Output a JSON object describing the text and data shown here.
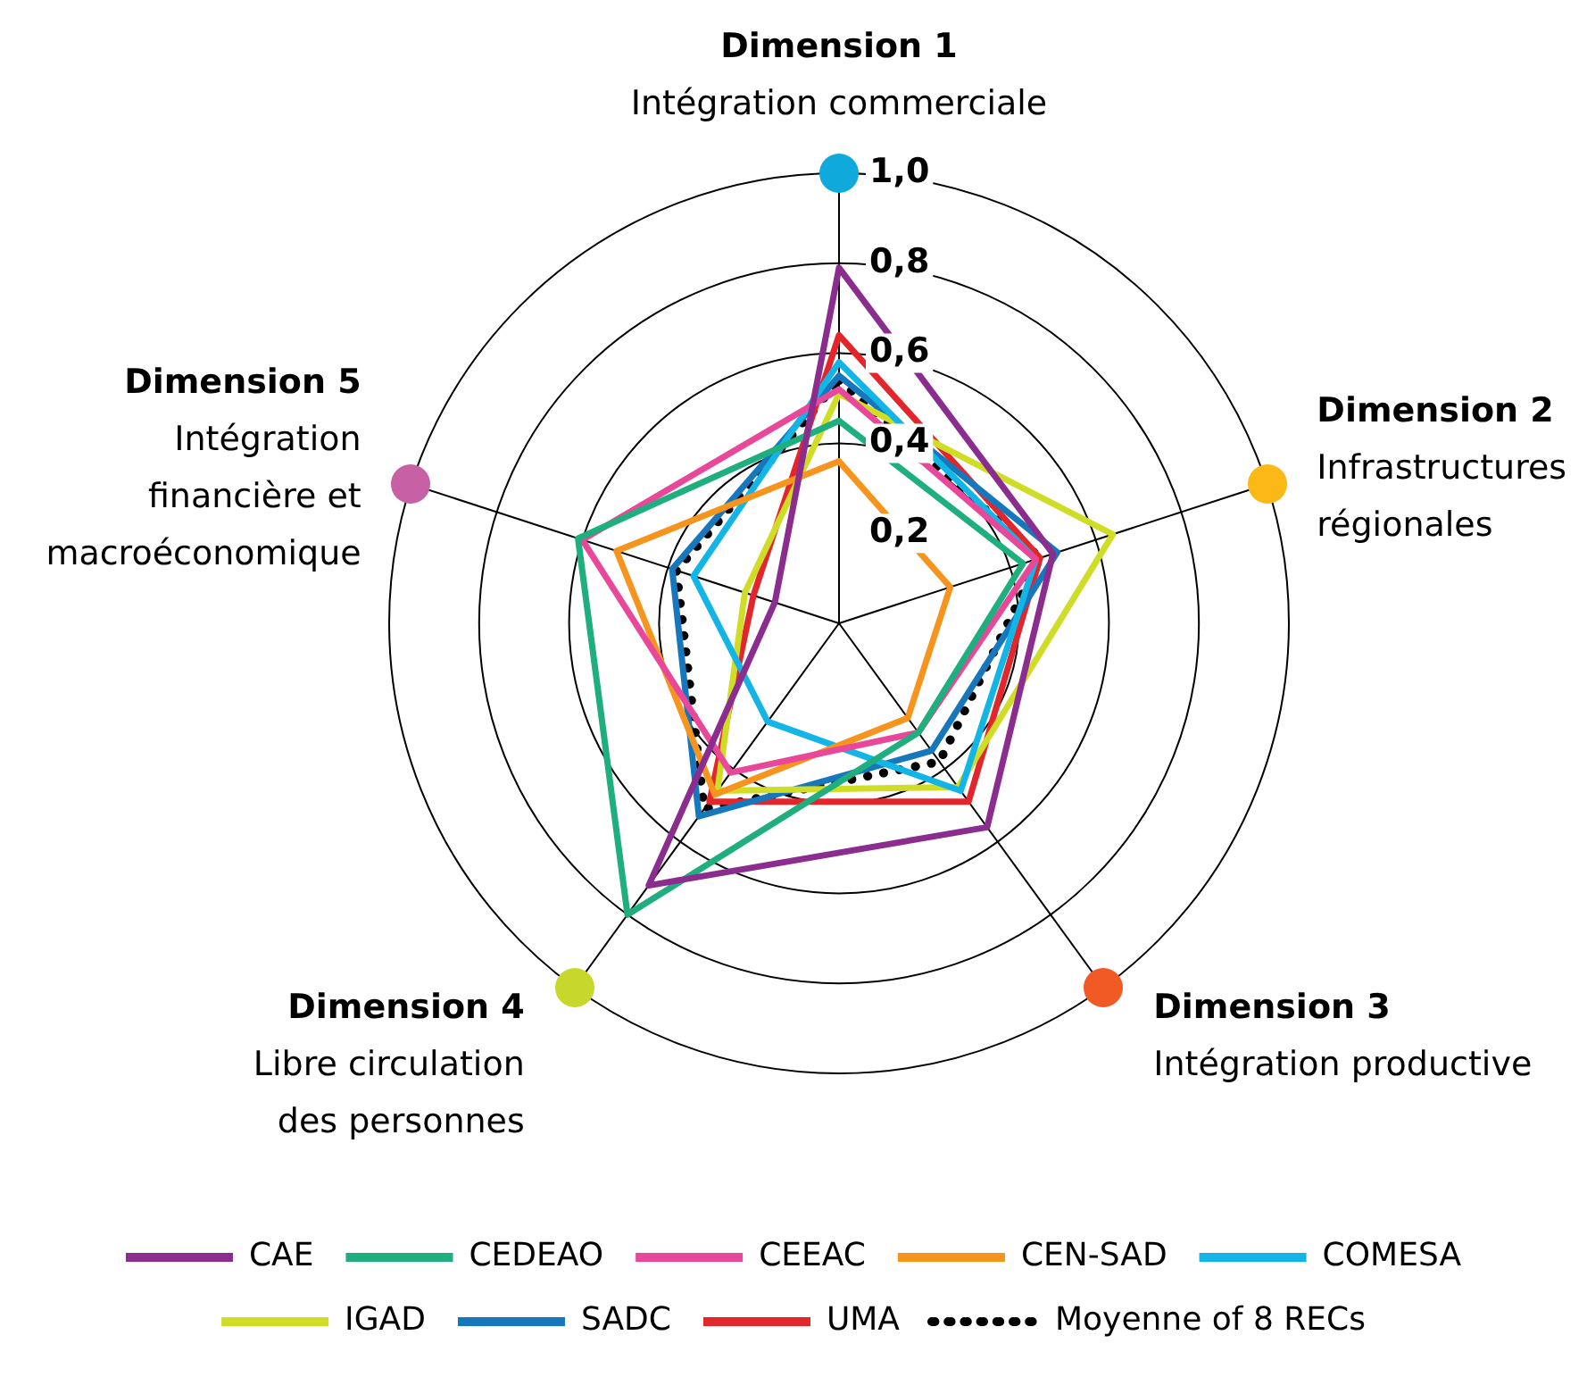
{
  "chart_data": {
    "type": "radar",
    "categories": [
      "Dimension 1\nIntégration commerciale",
      "Dimension 2\nInfrastructures\nrégionales",
      "Dimension 3\nIntégration productive",
      "Dimension 4\nLibre circulation\ndes personnes",
      "Dimension 5\nIntégration\nfinancière et\nmacroéconomique"
    ],
    "ylim": [
      0,
      1
    ],
    "yticks": [
      {
        "value": 0.2,
        "label": "0,2"
      },
      {
        "value": 0.4,
        "label": "0,4"
      },
      {
        "value": 0.6,
        "label": "0,6"
      },
      {
        "value": 0.8,
        "label": "0,8"
      },
      {
        "value": 1,
        "label": "1,0"
      }
    ],
    "grid": true,
    "legend": "bottom",
    "marker": "none",
    "series": [
      {
        "name": "CAE",
        "color": "#8b2c8f",
        "values": [
          0.79,
          0.5,
          0.56,
          0.72,
          0.15
        ]
      },
      {
        "name": "CEDEAO",
        "color": "#1fae7e",
        "values": [
          0.45,
          0.43,
          0.3,
          0.8,
          0.61
        ]
      },
      {
        "name": "CEEAC",
        "color": "#e8479a",
        "values": [
          0.52,
          0.46,
          0.3,
          0.41,
          0.6
        ]
      },
      {
        "name": "CEN-SAD",
        "color": "#f7941d",
        "values": [
          0.36,
          0.26,
          0.26,
          0.47,
          0.52
        ]
      },
      {
        "name": "COMESA",
        "color": "#12b5e6",
        "values": [
          0.58,
          0.46,
          0.46,
          0.27,
          0.34
        ]
      },
      {
        "name": "IGAD",
        "color": "#cfdd26",
        "values": [
          0.51,
          0.64,
          0.45,
          0.46,
          0.22
        ]
      },
      {
        "name": "SADC",
        "color": "#1777bd",
        "values": [
          0.55,
          0.51,
          0.35,
          0.53,
          0.39
        ]
      },
      {
        "name": "UMA",
        "color": "#e3262b",
        "values": [
          0.64,
          0.47,
          0.49,
          0.49,
          0.2
        ]
      },
      {
        "name": "Moyenne of 8 RECs",
        "color": "#000000",
        "line_style": "dotted",
        "values": [
          0.54,
          0.47,
          0.38,
          0.51,
          0.38
        ]
      }
    ]
  }
}
